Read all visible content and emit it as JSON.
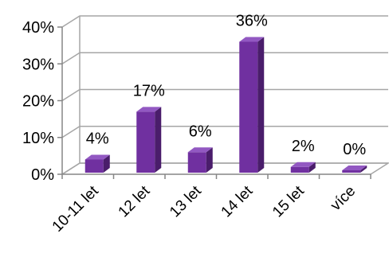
{
  "chart_data": {
    "type": "bar",
    "categories": [
      "10-11 let",
      "12 let",
      "13 let",
      "14 let",
      "15 let",
      "více"
    ],
    "values": [
      4,
      17,
      6,
      36,
      2,
      0
    ],
    "data_labels": [
      "4%",
      "17%",
      "6%",
      "36%",
      "2%",
      "0%"
    ],
    "y_ticks": [
      0,
      10,
      20,
      30,
      40
    ],
    "y_tick_labels": [
      "0%",
      "10%",
      "20%",
      "30%",
      "40%"
    ],
    "ylim": [
      0,
      40
    ],
    "grid": true,
    "legend": "none",
    "style": "3d-column",
    "colors": {
      "bar_front": "#7030a0",
      "bar_side": "#4a1d6b",
      "bar_top": "#9258c2",
      "gridline": "#a6a6a6",
      "axis": "#868686",
      "text": "#000000"
    }
  }
}
